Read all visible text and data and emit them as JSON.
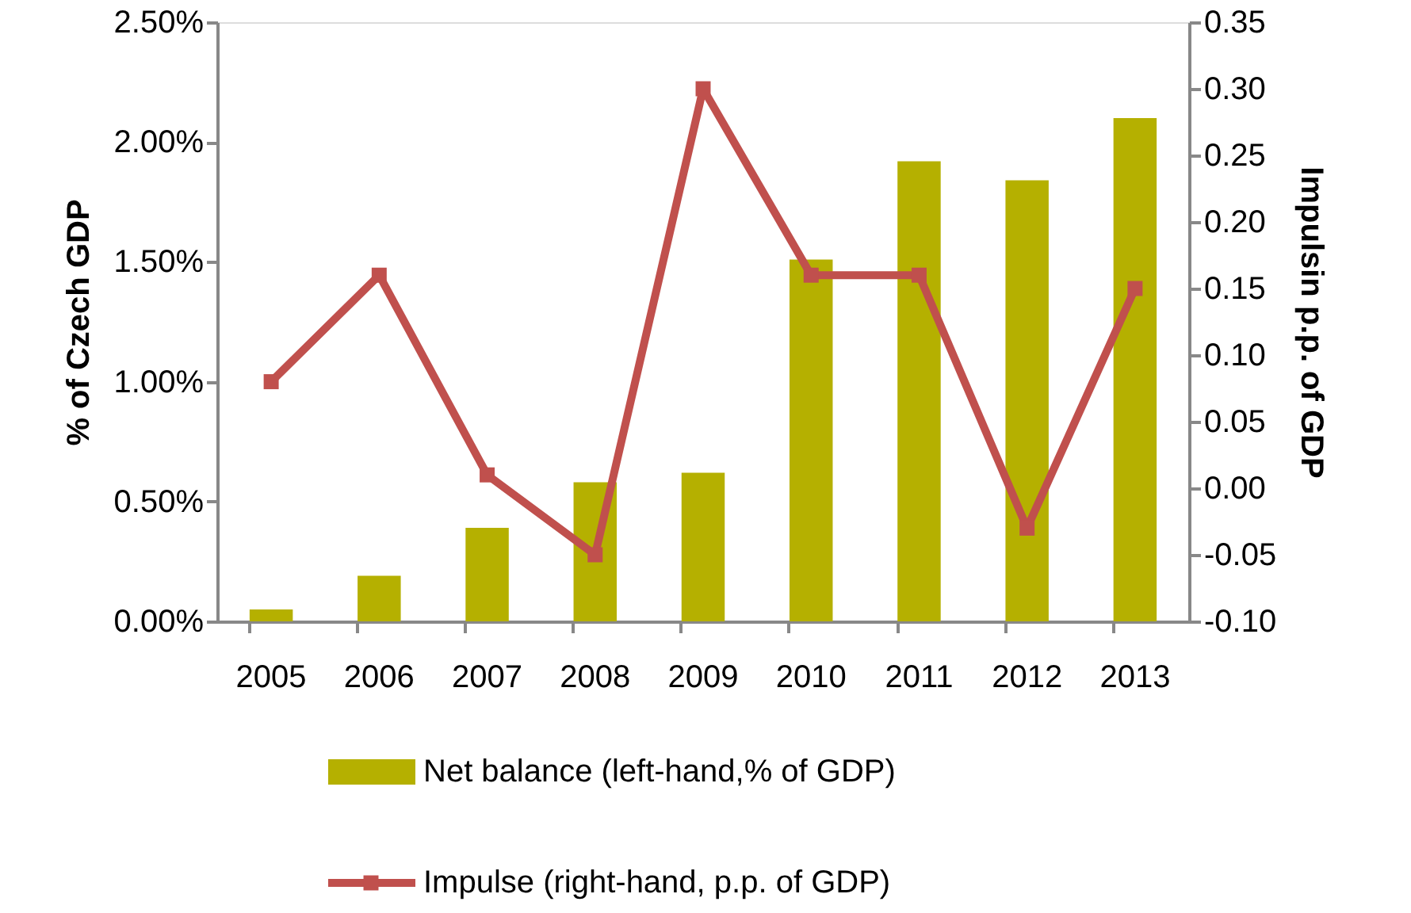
{
  "chart_data": {
    "type": "bar",
    "categories": [
      "2005",
      "2006",
      "2007",
      "2008",
      "2009",
      "2010",
      "2011",
      "2012",
      "2013"
    ],
    "series": [
      {
        "name": "Net balance (left-hand,% of GDP)",
        "color": "#b5b000",
        "values": [
          0.05,
          0.19,
          0.39,
          0.58,
          0.62,
          1.51,
          1.92,
          1.84,
          2.1
        ]
      },
      {
        "name": "Impulse (right-hand, p.p. of GDP)",
        "type": "line",
        "axis": "y2",
        "color": "#c0504d",
        "marker": "square",
        "values": [
          0.08,
          0.16,
          0.01,
          -0.05,
          0.3,
          0.16,
          0.16,
          -0.03,
          0.15
        ]
      }
    ],
    "ylabel": "% of Czech GDP",
    "y2label": "Impulsin p.p. of GDP",
    "ylim": [
      0,
      2.5
    ],
    "yticks": [
      {
        "value": 0,
        "label": "0.00%"
      },
      {
        "value": 0.5,
        "label": "0.50%"
      },
      {
        "value": 1,
        "label": "1.00%"
      },
      {
        "value": 1.5,
        "label": "1.50%"
      },
      {
        "value": 2,
        "label": "2.00%"
      },
      {
        "value": 2.5,
        "label": "2.50%"
      }
    ],
    "y2lim": [
      -0.1,
      0.35
    ],
    "y2ticks": [
      {
        "value": -0.1,
        "label": "-0.10"
      },
      {
        "value": -0.05,
        "label": "-0.05"
      },
      {
        "value": 0,
        "label": "0.00"
      },
      {
        "value": 0.05,
        "label": "0.05"
      },
      {
        "value": 0.1,
        "label": "0.10"
      },
      {
        "value": 0.15,
        "label": "0.15"
      },
      {
        "value": 0.2,
        "label": "0.20"
      },
      {
        "value": 0.25,
        "label": "0.25"
      },
      {
        "value": 0.3,
        "label": "0.30"
      },
      {
        "value": 0.35,
        "label": "0.35"
      }
    ],
    "grid": false,
    "legend": "bottom",
    "line_style": "solid"
  }
}
